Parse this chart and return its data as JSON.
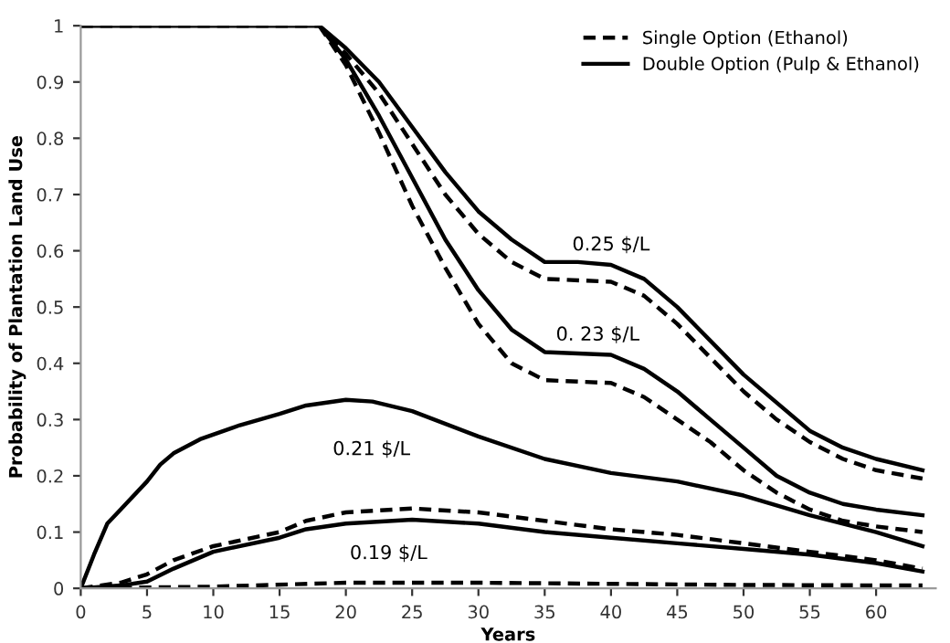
{
  "chart_data": {
    "type": "line",
    "xlabel": "Years",
    "ylabel": "Probability of Plantation Land Use",
    "xlim": [
      0,
      64.5
    ],
    "xticks": [
      0,
      5,
      10,
      15,
      20,
      25,
      30,
      35,
      40,
      45,
      50,
      55,
      60
    ],
    "ylim": [
      0,
      1
    ],
    "yticks": [
      0,
      0.1,
      0.2,
      0.3,
      0.4,
      0.5,
      0.6,
      0.7,
      0.8,
      0.9,
      1
    ],
    "grid": false,
    "legend": "top right",
    "marker": "none",
    "series": [
      {
        "name": "Single Option (Ethanol)",
        "color": "#000000",
        "line_style": "dashed",
        "x": [
          0,
          18,
          20,
          22.5,
          25,
          27.5,
          30,
          32.5,
          35,
          40,
          42.5,
          45,
          47.5,
          50,
          52.5,
          55,
          57.5,
          60,
          63.5
        ],
        "values": [
          1,
          1,
          0.95,
          0.88,
          0.79,
          0.7,
          0.63,
          0.58,
          0.55,
          0.545,
          0.52,
          0.47,
          0.41,
          0.35,
          0.3,
          0.26,
          0.23,
          0.21,
          0.195
        ]
      },
      {
        "name": "Double Option (Pulp & Ethanol)",
        "color": "#000000",
        "line_style": "solid",
        "x": [
          0,
          18,
          20,
          22.5,
          25,
          27.5,
          30,
          32.5,
          35,
          37.5,
          40,
          42.5,
          45,
          47.5,
          50,
          52.5,
          55,
          57.5,
          60,
          63.5
        ],
        "values": [
          1,
          1,
          0.96,
          0.9,
          0.82,
          0.74,
          0.67,
          0.62,
          0.58,
          0.58,
          0.575,
          0.55,
          0.5,
          0.44,
          0.38,
          0.33,
          0.28,
          0.25,
          0.23,
          0.21
        ]
      },
      {
        "color": "#000000",
        "line_style": "dashed",
        "x": [
          18,
          20,
          22.5,
          25,
          27.5,
          30,
          32.5,
          35,
          40,
          42.5,
          45,
          47.5,
          50,
          52.5,
          55,
          57.5,
          60,
          63.5
        ],
        "values": [
          1,
          0.93,
          0.81,
          0.68,
          0.57,
          0.47,
          0.4,
          0.37,
          0.365,
          0.34,
          0.3,
          0.26,
          0.21,
          0.17,
          0.14,
          0.12,
          0.11,
          0.1
        ]
      },
      {
        "color": "#000000",
        "line_style": "solid",
        "x": [
          18,
          20,
          22.5,
          25,
          27.5,
          30,
          32.5,
          35,
          40,
          42.5,
          45,
          47.5,
          50,
          52.5,
          55,
          57.5,
          60,
          63.5
        ],
        "values": [
          1,
          0.94,
          0.84,
          0.73,
          0.62,
          0.53,
          0.46,
          0.42,
          0.415,
          0.39,
          0.35,
          0.3,
          0.25,
          0.2,
          0.17,
          0.15,
          0.14,
          0.13
        ]
      },
      {
        "color": "#000000",
        "line_style": "solid",
        "x": [
          0,
          1,
          2,
          3,
          5,
          6,
          7,
          9,
          12,
          15,
          17,
          20,
          22,
          25,
          30,
          35,
          40,
          45,
          50,
          55,
          60,
          63.5
        ],
        "values": [
          0,
          0.06,
          0.115,
          0.14,
          0.19,
          0.22,
          0.24,
          0.265,
          0.29,
          0.31,
          0.325,
          0.335,
          0.332,
          0.315,
          0.27,
          0.23,
          0.205,
          0.19,
          0.165,
          0.13,
          0.1,
          0.075
        ]
      },
      {
        "color": "#000000",
        "line_style": "dashed",
        "x": [
          0,
          3,
          5,
          7,
          10,
          15,
          17,
          20,
          25,
          30,
          35,
          40,
          45,
          50,
          55,
          60,
          63.5
        ],
        "values": [
          0,
          0.01,
          0.025,
          0.05,
          0.075,
          0.1,
          0.12,
          0.135,
          0.142,
          0.135,
          0.12,
          0.105,
          0.095,
          0.08,
          0.065,
          0.05,
          0.035
        ]
      },
      {
        "color": "#000000",
        "line_style": "solid",
        "x": [
          0,
          3,
          5,
          7,
          10,
          15,
          17,
          20,
          25,
          30,
          35,
          40,
          45,
          50,
          55,
          60,
          63.5
        ],
        "values": [
          0,
          0.005,
          0.012,
          0.035,
          0.065,
          0.09,
          0.105,
          0.115,
          0.122,
          0.115,
          0.1,
          0.09,
          0.08,
          0.07,
          0.06,
          0.045,
          0.03
        ]
      },
      {
        "color": "#000000",
        "line_style": "dashed",
        "x": [
          0,
          10,
          20,
          30,
          40,
          50,
          63.5
        ],
        "values": [
          0,
          0.003,
          0.01,
          0.01,
          0.008,
          0.006,
          0.005
        ]
      }
    ],
    "annotations": [
      {
        "text": "0.25 $/L",
        "x": 40,
        "y": 0.58
      },
      {
        "text": "0. 23 $/L",
        "x": 39,
        "y": 0.42
      },
      "0.21 $/L",
      "0.19 $/L"
    ]
  }
}
